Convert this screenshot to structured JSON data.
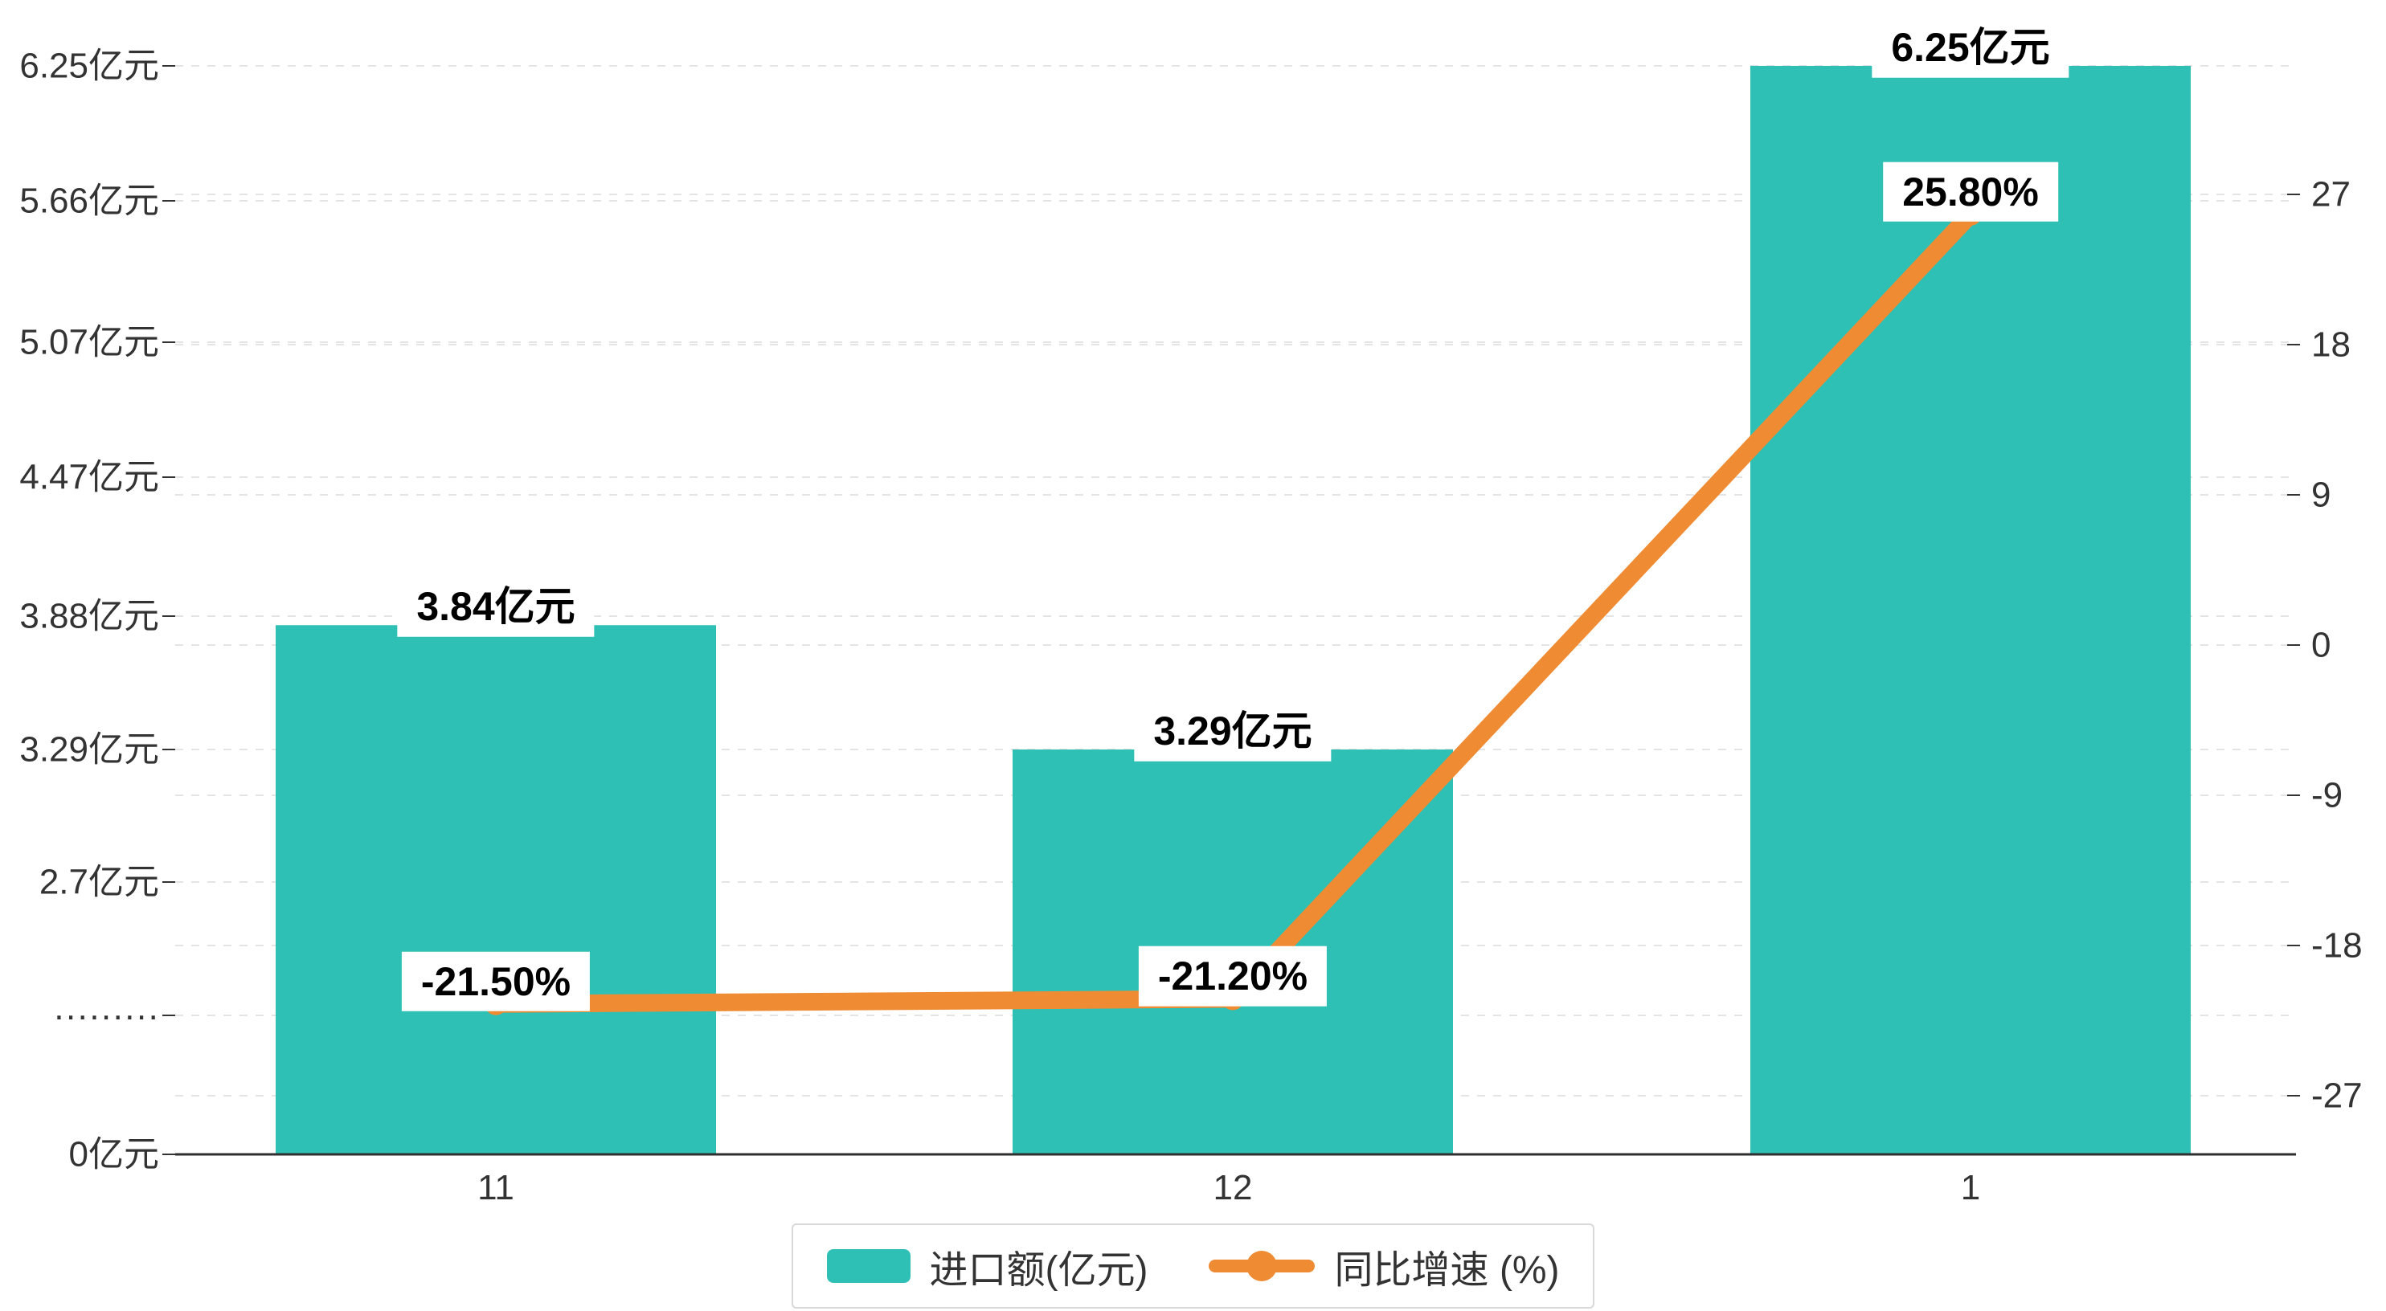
{
  "chart_data": {
    "type": "bar",
    "combo": "bar+line dual-axis",
    "categories": [
      "11",
      "12",
      "1"
    ],
    "series": [
      {
        "name": "进口额(亿元)",
        "type": "bar",
        "axis": "left",
        "values": [
          3.84,
          3.29,
          6.25
        ],
        "data_labels": [
          "3.84亿元",
          "3.29亿元",
          "6.25亿元"
        ],
        "color": "#2ec0b5"
      },
      {
        "name": "同比增速 (%)",
        "type": "line",
        "axis": "right",
        "values": [
          -21.5,
          -21.2,
          25.8
        ],
        "data_labels": [
          "-21.50%",
          "-21.20%",
          "25.80%"
        ],
        "color": "#ef8b33"
      }
    ],
    "left_axis": {
      "tick_labels": [
        "6.25亿元",
        "5.66亿元",
        "5.07亿元",
        "4.47亿元",
        "3.88亿元",
        "3.29亿元",
        "2.7亿元",
        "·········",
        "0亿元"
      ]
    },
    "right_axis": {
      "tick_labels": [
        "27",
        "18",
        "9",
        "0",
        "-9",
        "-18",
        "-27"
      ],
      "min": -27,
      "max": 27
    },
    "legend": {
      "position": "bottom-center",
      "items": [
        {
          "label": "进口额(亿元)",
          "marker": "bar-swatch",
          "color": "#2ec0b5"
        },
        {
          "label": "同比增速 (%)",
          "marker": "line-dot",
          "color": "#ef8b33"
        }
      ]
    },
    "grid": "dashed horizontal gridlines",
    "colors": {
      "bar": "#2ec0b5",
      "line": "#ef8b33",
      "axis_text": "#333333",
      "axis_line": "#2f2f2f",
      "gridline": "#e4e4e4",
      "label_bg": "#ffffff"
    }
  }
}
